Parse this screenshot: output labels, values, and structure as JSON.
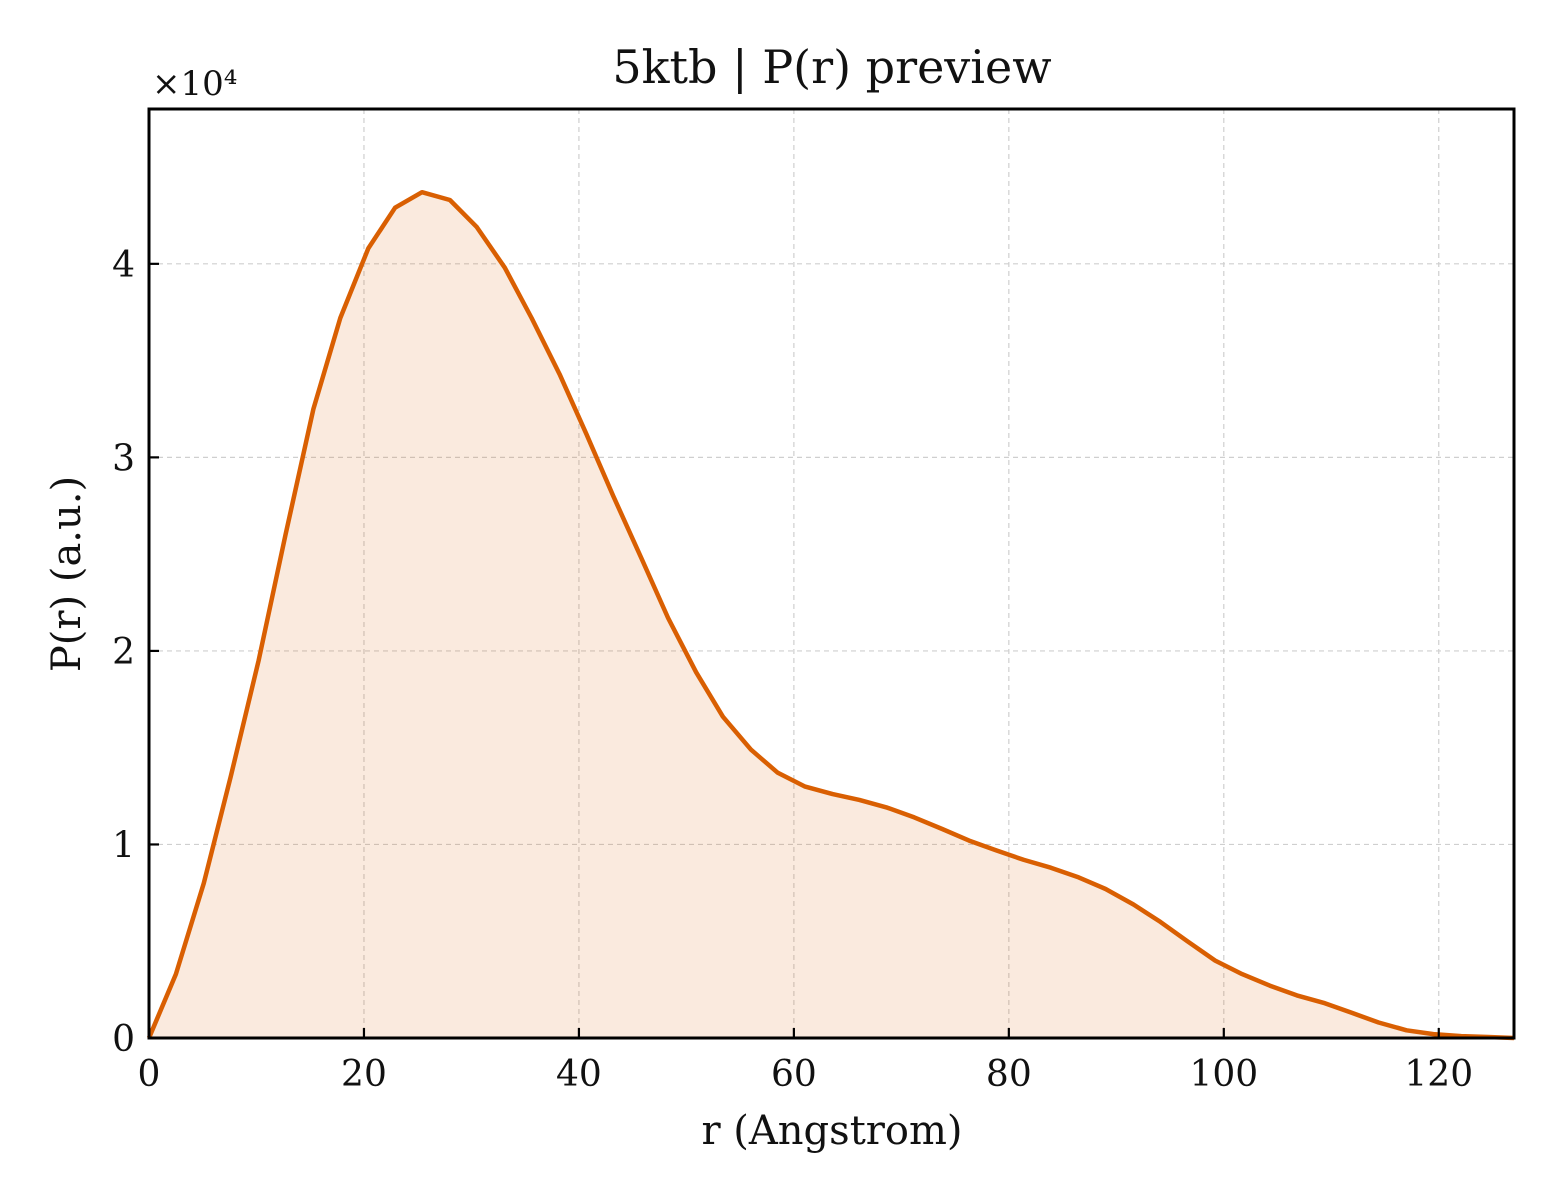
{
  "chart_data": {
    "type": "area",
    "title": "5ktb | P(r) preview",
    "xlabel": "r (Angstrom)",
    "ylabel": "P(r) (a.u.)",
    "y_multiplier_label": "×10⁴",
    "y_scale_factor": 10000,
    "xlim": [
      0,
      127
    ],
    "ylim": [
      0,
      48000
    ],
    "x_ticks": [
      0,
      20,
      40,
      60,
      80,
      100,
      120
    ],
    "x_tick_labels": [
      "0",
      "20",
      "40",
      "60",
      "80",
      "100",
      "120"
    ],
    "y_ticks": [
      0,
      10000,
      20000,
      30000,
      40000
    ],
    "y_tick_labels": [
      "0",
      "1",
      "2",
      "3",
      "4"
    ],
    "grid": true,
    "colors": {
      "line": "#d95f02",
      "fill": "#d95f02",
      "fill_opacity": 0.13
    },
    "series": [
      {
        "x": [
          0,
          2.5,
          5.1,
          7.6,
          10.2,
          12.7,
          15.3,
          17.8,
          20.4,
          22.9,
          25.4,
          28.0,
          30.5,
          33.1,
          35.6,
          38.2,
          40.7,
          43.2,
          45.8,
          48.3,
          50.9,
          53.4,
          56.0,
          58.5,
          61.0,
          63.6,
          66.1,
          68.7,
          71.2,
          73.8,
          76.3,
          78.8,
          81.4,
          83.9,
          86.5,
          89.0,
          91.6,
          94.1,
          96.6,
          99.2,
          101.7,
          104.3,
          106.8,
          109.4,
          111.9,
          114.4,
          117.0,
          119.5,
          122.1,
          124.6,
          127.0
        ],
        "y": [
          0,
          3300,
          8000,
          13500,
          19500,
          26000,
          32500,
          37200,
          40800,
          42900,
          43700,
          43300,
          41900,
          39800,
          37200,
          34300,
          31200,
          28000,
          24800,
          21700,
          18900,
          16600,
          14900,
          13700,
          13000,
          12600,
          12300,
          11900,
          11400,
          10800,
          10200,
          9700,
          9200,
          8800,
          8300,
          7700,
          6900,
          6000,
          5000,
          4000,
          3300,
          2700,
          2200,
          1800,
          1300,
          800,
          400,
          200,
          100,
          50,
          0
        ]
      }
    ]
  }
}
